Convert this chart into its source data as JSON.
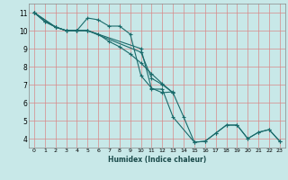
{
  "xlabel": "Humidex (Indice chaleur)",
  "bg_color": "#c8e8e8",
  "grid_color": "#e8f8f8",
  "line_color": "#1a6b6b",
  "xlim": [
    -0.5,
    23.5
  ],
  "ylim": [
    3.5,
    11.5
  ],
  "yticks": [
    4,
    5,
    6,
    7,
    8,
    9,
    10,
    11
  ],
  "xticks": [
    0,
    1,
    2,
    3,
    4,
    5,
    6,
    7,
    8,
    9,
    10,
    11,
    12,
    13,
    14,
    15,
    16,
    17,
    18,
    19,
    20,
    21,
    22,
    23
  ],
  "series": [
    {
      "x": [
        0,
        1,
        2,
        3,
        4,
        5,
        6,
        7,
        8,
        9,
        10,
        11,
        12,
        13
      ],
      "y": [
        11.0,
        10.5,
        10.2,
        10.0,
        10.0,
        10.7,
        10.6,
        10.25,
        10.25,
        9.8,
        7.5,
        6.8,
        6.55,
        6.6
      ]
    },
    {
      "x": [
        0,
        1,
        2,
        3,
        4,
        5,
        6,
        7,
        8,
        9,
        10,
        11,
        12,
        13
      ],
      "y": [
        11.0,
        10.5,
        10.2,
        10.0,
        10.0,
        10.0,
        9.8,
        9.4,
        9.1,
        8.7,
        8.2,
        7.6,
        7.05,
        6.55
      ]
    },
    {
      "x": [
        0,
        2,
        3,
        4,
        5,
        10,
        11,
        12,
        13,
        15,
        16,
        17,
        18,
        19,
        20,
        21,
        22,
        23
      ],
      "y": [
        11.0,
        10.2,
        10.0,
        10.0,
        10.0,
        9.0,
        6.75,
        6.75,
        5.2,
        3.8,
        3.85,
        4.3,
        4.75,
        4.75,
        4.0,
        4.35,
        4.5,
        3.85
      ]
    },
    {
      "x": [
        0,
        2,
        3,
        4,
        5,
        10,
        11,
        12,
        13,
        14,
        15,
        16,
        17,
        18,
        19,
        20,
        21,
        22,
        23
      ],
      "y": [
        11.0,
        10.2,
        10.0,
        10.0,
        10.0,
        8.8,
        7.35,
        7.0,
        6.55,
        5.2,
        3.8,
        3.85,
        4.3,
        4.75,
        4.75,
        4.0,
        4.35,
        4.5,
        3.85
      ]
    }
  ]
}
